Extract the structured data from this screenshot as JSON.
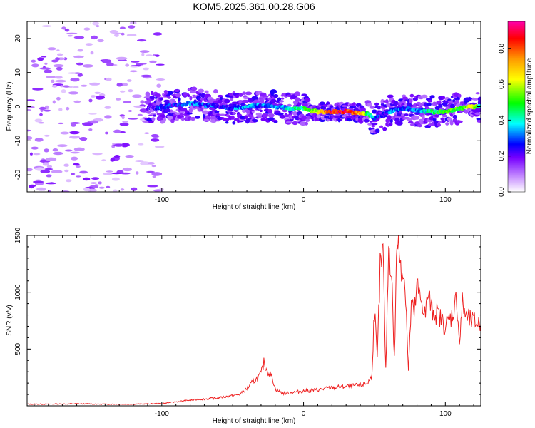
{
  "title": "KOM5.2025.361.00.28.G06",
  "chart_data": [
    {
      "type": "heatmap",
      "name": "spectrogram",
      "xlabel": "Height of straight line (km)",
      "ylabel": "Frequency (Hz)",
      "xlim": [
        -195,
        125
      ],
      "ylim": [
        -25,
        25
      ],
      "xticks": [
        -100,
        0,
        100
      ],
      "xticklabels": [
        "-100",
        "0",
        "100"
      ],
      "yticks": [
        -20,
        -10,
        0,
        10,
        20
      ],
      "yticklabels": [
        "-20",
        "-10",
        "0",
        "10",
        "20"
      ],
      "colorbar": {
        "label": "Normalized spectral amplitude",
        "range": [
          0,
          0.95
        ],
        "ticks": [
          0.0,
          0.2,
          0.4,
          0.6,
          0.8
        ],
        "ticklabels": [
          "0.0",
          "0.2",
          "0.4",
          "0.6",
          "0.8"
        ],
        "colors": [
          "#ffffff",
          "#cc99ff",
          "#7700ff",
          "#0000ff",
          "#00ffff",
          "#00ff00",
          "#ffff00",
          "#ff9900",
          "#ff0000",
          "#ff00aa"
        ]
      },
      "ridge": {
        "x": [
          -110,
          -100,
          -90,
          -80,
          -70,
          -60,
          -50,
          -40,
          -30,
          -20,
          -10,
          0,
          10,
          20,
          30,
          40,
          45,
          50,
          55,
          60,
          70,
          80,
          90,
          100,
          110,
          120,
          125
        ],
        "freq": [
          -0.5,
          -0.3,
          0.5,
          1.0,
          0.5,
          0.0,
          -0.5,
          0.0,
          0.5,
          0.0,
          -0.5,
          -0.5,
          -1.5,
          -1.5,
          -1.5,
          -2.0,
          -2.0,
          -3.5,
          -2.5,
          -1.5,
          -0.5,
          -1.0,
          -1.5,
          -1.5,
          -0.5,
          0.0,
          0.0
        ],
        "amp": [
          0.15,
          0.3,
          0.25,
          0.3,
          0.3,
          0.25,
          0.3,
          0.35,
          0.3,
          0.3,
          0.4,
          0.45,
          0.6,
          0.85,
          0.85,
          0.7,
          0.5,
          0.3,
          0.2,
          0.3,
          0.3,
          0.3,
          0.45,
          0.5,
          0.5,
          0.6,
          0.4
        ]
      },
      "noise_region_x": [
        -195,
        -100
      ]
    },
    {
      "type": "line",
      "name": "snr",
      "xlabel": "Height of straight line (km)",
      "ylabel": "SNR (v/v)",
      "xlim": [
        -195,
        125
      ],
      "ylim": [
        0,
        1500
      ],
      "xticks": [
        -100,
        0,
        100
      ],
      "xticklabels": [
        "-100",
        "0",
        "100"
      ],
      "yticks": [
        500,
        1000,
        1500
      ],
      "yticklabels": [
        "500",
        "1000",
        "1500"
      ],
      "color": "#ee2222",
      "series": [
        {
          "name": "SNR",
          "x": [
            -195,
            -180,
            -160,
            -140,
            -120,
            -100,
            -90,
            -80,
            -70,
            -60,
            -50,
            -45,
            -40,
            -35,
            -32,
            -30,
            -28,
            -25,
            -22,
            -20,
            -15,
            -10,
            0,
            10,
            20,
            30,
            40,
            45,
            48,
            50,
            52,
            54,
            56,
            58,
            60,
            62,
            64,
            66,
            68,
            70,
            72,
            74,
            76,
            78,
            80,
            82,
            84,
            86,
            88,
            90,
            95,
            100,
            105,
            108,
            110,
            112,
            115,
            120,
            125
          ],
          "y": [
            15,
            15,
            18,
            15,
            15,
            20,
            35,
            50,
            60,
            70,
            90,
            100,
            150,
            220,
            250,
            280,
            380,
            300,
            250,
            150,
            110,
            115,
            130,
            140,
            160,
            170,
            180,
            200,
            250,
            850,
            400,
            1200,
            1350,
            300,
            1400,
            1200,
            400,
            1500,
            1300,
            1200,
            1000,
            300,
            900,
            800,
            1050,
            950,
            900,
            800,
            1000,
            850,
            800,
            700,
            800,
            950,
            550,
            900,
            770,
            740,
            720
          ]
        }
      ]
    }
  ]
}
